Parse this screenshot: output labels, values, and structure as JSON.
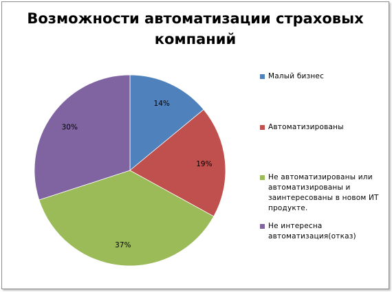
{
  "chart_data": {
    "type": "pie",
    "title": "Возможности автоматизации страховых компаний",
    "categories": [
      "Малый бизнес",
      "Автоматизированы",
      "Не автоматизированы  или автоматизированы и заинтересованы в новом ИТ продукте.",
      "Не интересна автоматизация(отказ)"
    ],
    "values": [
      14,
      19,
      37,
      30
    ],
    "data_labels": [
      "14%",
      "19%",
      "37%",
      "30%"
    ],
    "colors": [
      "#4f81bd",
      "#c0504d",
      "#9bbb59",
      "#8064a2"
    ],
    "legend_position": "right",
    "start_angle": "top",
    "direction": "clockwise"
  }
}
